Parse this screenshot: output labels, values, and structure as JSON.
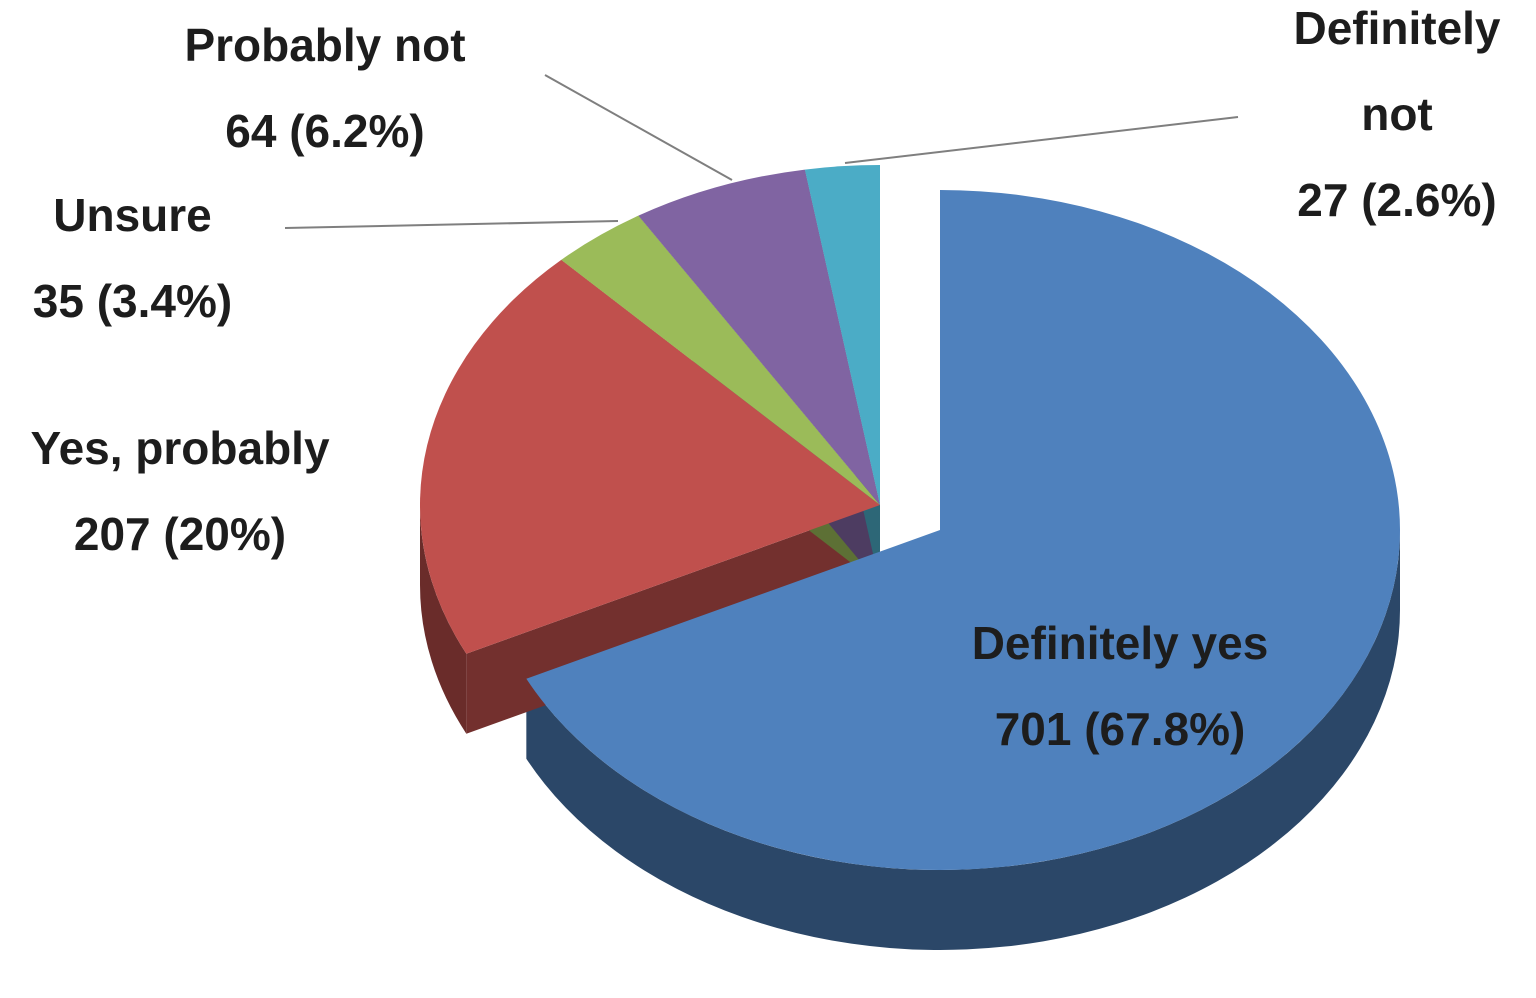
{
  "chart_data": {
    "type": "pie",
    "categories": [
      "Definitely yes",
      "Yes, probably",
      "Unsure",
      "Probably not",
      "Definitely not"
    ],
    "values": [
      701,
      207,
      35,
      64,
      27
    ],
    "value_labels": [
      "701 (67.8%)",
      "207 (20%)",
      "35 (3.4%)",
      "64 (6.2%)",
      "27 (2.6%)"
    ],
    "colors": [
      "#4f81bd",
      "#c0504d",
      "#9bbb59",
      "#8064a2",
      "#4bacc6"
    ]
  }
}
